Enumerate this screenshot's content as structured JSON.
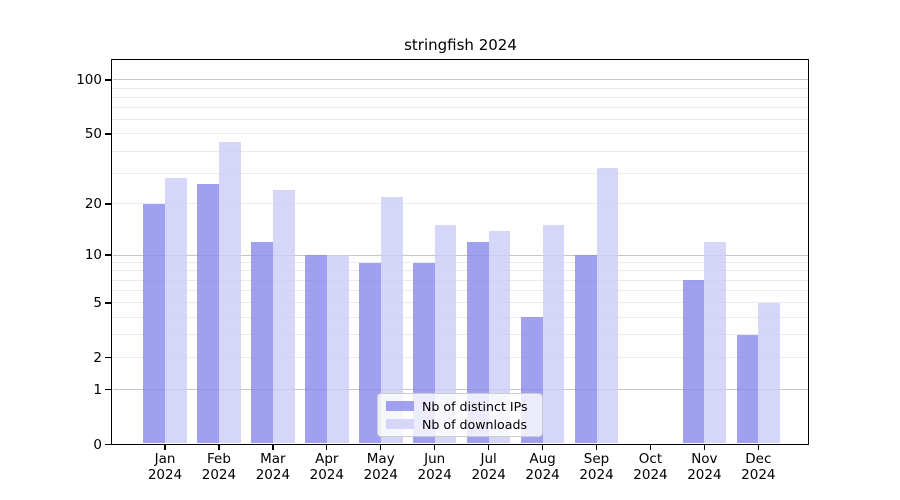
{
  "chart_data": {
    "type": "bar",
    "title": "stringfish 2024",
    "categories": [
      "Jan",
      "Feb",
      "Mar",
      "Apr",
      "May",
      "Jun",
      "Jul",
      "Aug",
      "Sep",
      "Oct",
      "Nov",
      "Dec"
    ],
    "year_label": "2024",
    "series": [
      {
        "name": "Nb of distinct IPs",
        "color": "#8888ee",
        "values": [
          20,
          26,
          12,
          10,
          9,
          9,
          12,
          4,
          10,
          0,
          7,
          3
        ]
      },
      {
        "name": "Nb of downloads",
        "color": "#ccccf6",
        "values": [
          28,
          45,
          24,
          10,
          22,
          15,
          14,
          15,
          32,
          0,
          12,
          5
        ]
      }
    ],
    "bar_alpha": 0.8,
    "yscale": "log1p",
    "ylim": [
      0,
      120
    ],
    "yticks": [
      0,
      1,
      2,
      5,
      10,
      20,
      50,
      100
    ],
    "grid": true,
    "grid_major": [
      1,
      10,
      100
    ],
    "grid_minor": [
      2,
      3,
      4,
      5,
      6,
      7,
      8,
      9,
      20,
      30,
      40,
      50,
      60,
      70,
      80,
      90
    ],
    "legend_position": "lower-center",
    "colors": {
      "grid_major": "#c6c6c6",
      "grid_minor": "#ebebeb",
      "spine": "#000000",
      "background": "#ffffff",
      "text": "#000000"
    }
  }
}
